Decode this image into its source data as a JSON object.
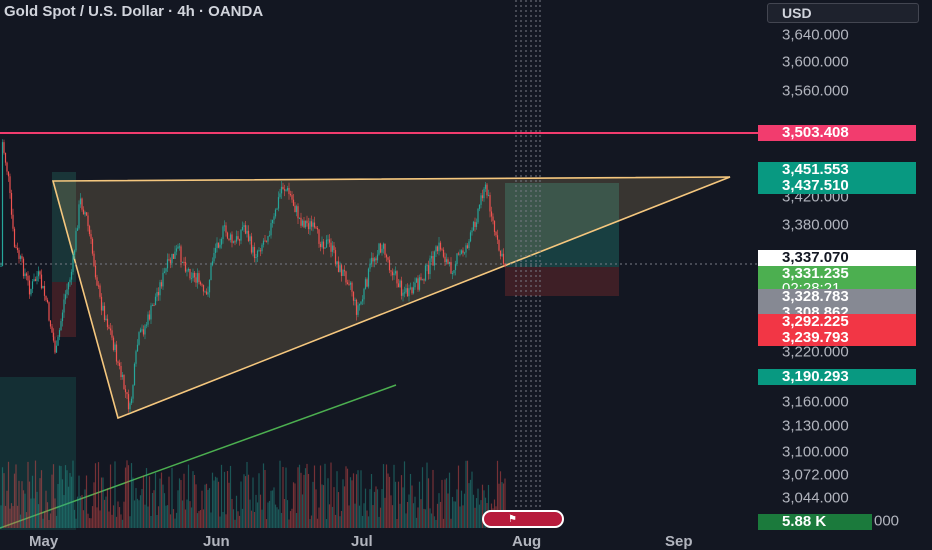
{
  "header": {
    "title": "Gold Spot / U.S. Dollar · 4h · OANDA",
    "currency": "USD"
  },
  "price_axis": {
    "ticks": [
      "3,640.000",
      "3,600.000",
      "3,560.000",
      "3,420.000",
      "3,380.000",
      "3,220.000",
      "3,160.000",
      "3,130.000",
      "3,100.000",
      "3,072.000",
      "3,044.000",
      "000"
    ]
  },
  "badges": {
    "resistance": "3,503.408",
    "target_top": "3,451.553",
    "target_bottom": "3,437.510",
    "entry": "3,337.070",
    "last_price": "3,331.235",
    "countdown": "02:28:21",
    "gray1": "3,328.783",
    "gray2": "3,308.862",
    "stop1": "3,292.225",
    "stop2": "3,239.793",
    "support": "3,190.293",
    "volume": "5.88 K"
  },
  "time_axis": {
    "labels": [
      "May",
      "Jun",
      "Jul",
      "Aug",
      "Sep"
    ]
  },
  "colors": {
    "background": "#131722",
    "resistance_line": "#f23c6e",
    "triangle_stroke": "#f5c77e",
    "up_candle": "#26a69a",
    "down_candle": "#ef5350",
    "entry_badge": "#ffffff",
    "teal_badge": "#089981",
    "green_badge": "#4caf50",
    "gray_badge": "#868993",
    "red_badge": "#f23645",
    "trend_line": "#4caf50"
  },
  "icons": {
    "flag": "us-flag-icon"
  }
}
